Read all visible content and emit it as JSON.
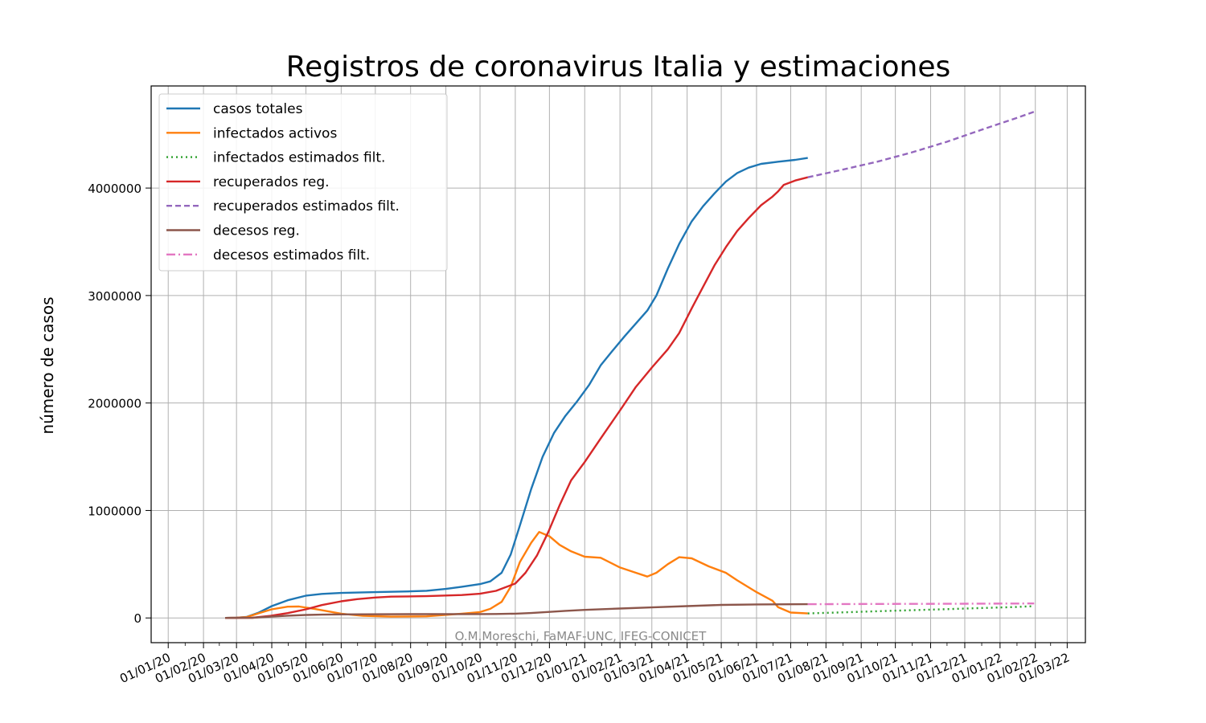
{
  "chart_data": {
    "type": "line",
    "title": "Registros de coronavirus Italia y estimaciones",
    "xlabel": "",
    "ylabel": "número de casos",
    "watermark": "O.M.Moreschi, FaMAF-UNC, IFEG-CONICET",
    "xlim": [
      "2019-12-17",
      "2022-03-17"
    ],
    "ylim": [
      -230000,
      4950000
    ],
    "grid": true,
    "legend_position": "top-left",
    "x_tick_labels": [
      "01/01/20",
      "01/02/20",
      "01/03/20",
      "01/04/20",
      "01/05/20",
      "01/06/20",
      "01/07/20",
      "01/08/20",
      "01/09/20",
      "01/10/20",
      "01/11/20",
      "01/12/20",
      "01/01/21",
      "01/02/21",
      "01/03/21",
      "01/04/21",
      "01/05/21",
      "01/06/21",
      "01/07/21",
      "01/08/21",
      "01/09/21",
      "01/10/21",
      "01/11/21",
      "01/12/21",
      "01/01/22",
      "01/02/22",
      "01/03/22"
    ],
    "y_ticks": [
      0,
      1000000,
      2000000,
      3000000,
      4000000
    ],
    "y_tick_labels": [
      "0",
      "1000000",
      "2000000",
      "3000000",
      "4000000"
    ],
    "series": [
      {
        "name": "casos totales",
        "color": "#1f77b4",
        "style": "solid",
        "points": [
          [
            "2020-02-20",
            0
          ],
          [
            "2020-03-01",
            1700
          ],
          [
            "2020-03-10",
            10000
          ],
          [
            "2020-03-20",
            47000
          ],
          [
            "2020-04-01",
            110000
          ],
          [
            "2020-04-15",
            165000
          ],
          [
            "2020-05-01",
            207000
          ],
          [
            "2020-05-15",
            224000
          ],
          [
            "2020-06-01",
            233000
          ],
          [
            "2020-07-01",
            240000
          ],
          [
            "2020-08-01",
            248000
          ],
          [
            "2020-08-15",
            253000
          ],
          [
            "2020-09-01",
            270000
          ],
          [
            "2020-09-15",
            290000
          ],
          [
            "2020-10-01",
            315000
          ],
          [
            "2020-10-10",
            340000
          ],
          [
            "2020-10-20",
            420000
          ],
          [
            "2020-10-28",
            590000
          ],
          [
            "2020-11-05",
            860000
          ],
          [
            "2020-11-15",
            1200000
          ],
          [
            "2020-11-25",
            1500000
          ],
          [
            "2020-12-05",
            1720000
          ],
          [
            "2020-12-15",
            1880000
          ],
          [
            "2020-12-25",
            2010000
          ],
          [
            "2021-01-05",
            2170000
          ],
          [
            "2021-01-15",
            2350000
          ],
          [
            "2021-01-25",
            2480000
          ],
          [
            "2021-02-05",
            2620000
          ],
          [
            "2021-02-15",
            2740000
          ],
          [
            "2021-02-25",
            2860000
          ],
          [
            "2021-03-05",
            3000000
          ],
          [
            "2021-03-15",
            3250000
          ],
          [
            "2021-03-25",
            3480000
          ],
          [
            "2021-04-05",
            3690000
          ],
          [
            "2021-04-15",
            3830000
          ],
          [
            "2021-04-25",
            3950000
          ],
          [
            "2021-05-05",
            4060000
          ],
          [
            "2021-05-15",
            4140000
          ],
          [
            "2021-05-25",
            4190000
          ],
          [
            "2021-06-05",
            4225000
          ],
          [
            "2021-06-20",
            4245000
          ],
          [
            "2021-07-05",
            4262000
          ],
          [
            "2021-07-16",
            4280000
          ]
        ]
      },
      {
        "name": "infectados activos",
        "color": "#ff7f0e",
        "style": "solid",
        "points": [
          [
            "2020-02-20",
            0
          ],
          [
            "2020-03-01",
            1500
          ],
          [
            "2020-03-10",
            8000
          ],
          [
            "2020-03-20",
            42000
          ],
          [
            "2020-04-01",
            80000
          ],
          [
            "2020-04-15",
            105000
          ],
          [
            "2020-04-25",
            106000
          ],
          [
            "2020-05-10",
            82000
          ],
          [
            "2020-06-01",
            40000
          ],
          [
            "2020-06-20",
            20000
          ],
          [
            "2020-07-15",
            12000
          ],
          [
            "2020-08-15",
            15000
          ],
          [
            "2020-09-15",
            40000
          ],
          [
            "2020-10-01",
            55000
          ],
          [
            "2020-10-10",
            85000
          ],
          [
            "2020-10-20",
            150000
          ],
          [
            "2020-10-28",
            290000
          ],
          [
            "2020-11-05",
            520000
          ],
          [
            "2020-11-15",
            700000
          ],
          [
            "2020-11-22",
            800000
          ],
          [
            "2020-12-01",
            760000
          ],
          [
            "2020-12-10",
            680000
          ],
          [
            "2020-12-20",
            620000
          ],
          [
            "2021-01-01",
            570000
          ],
          [
            "2021-01-15",
            560000
          ],
          [
            "2021-02-01",
            470000
          ],
          [
            "2021-02-15",
            420000
          ],
          [
            "2021-02-25",
            385000
          ],
          [
            "2021-03-05",
            420000
          ],
          [
            "2021-03-15",
            500000
          ],
          [
            "2021-03-25",
            565000
          ],
          [
            "2021-04-05",
            555000
          ],
          [
            "2021-04-20",
            480000
          ],
          [
            "2021-05-05",
            420000
          ],
          [
            "2021-05-15",
            350000
          ],
          [
            "2021-06-01",
            240000
          ],
          [
            "2021-06-15",
            160000
          ],
          [
            "2021-06-20",
            100000
          ],
          [
            "2021-07-01",
            50000
          ],
          [
            "2021-07-16",
            42000
          ]
        ]
      },
      {
        "name": "infectados estimados filt.",
        "color": "#2ca02c",
        "style": "dotted",
        "points": [
          [
            "2021-07-16",
            42000
          ],
          [
            "2021-08-15",
            52000
          ],
          [
            "2021-09-15",
            62000
          ],
          [
            "2021-10-15",
            72000
          ],
          [
            "2021-11-15",
            82000
          ],
          [
            "2021-12-15",
            92000
          ],
          [
            "2022-01-15",
            102000
          ],
          [
            "2022-01-31",
            110000
          ]
        ]
      },
      {
        "name": "recuperados reg.",
        "color": "#d62728",
        "style": "solid",
        "points": [
          [
            "2020-02-20",
            0
          ],
          [
            "2020-03-15",
            2000
          ],
          [
            "2020-03-31",
            20000
          ],
          [
            "2020-04-15",
            45000
          ],
          [
            "2020-05-01",
            80000
          ],
          [
            "2020-05-15",
            120000
          ],
          [
            "2020-06-01",
            155000
          ],
          [
            "2020-06-15",
            175000
          ],
          [
            "2020-07-01",
            190000
          ],
          [
            "2020-07-15",
            198000
          ],
          [
            "2020-08-15",
            203000
          ],
          [
            "2020-09-15",
            213000
          ],
          [
            "2020-10-01",
            225000
          ],
          [
            "2020-10-15",
            252000
          ],
          [
            "2020-11-01",
            320000
          ],
          [
            "2020-11-10",
            420000
          ],
          [
            "2020-11-20",
            580000
          ],
          [
            "2020-11-30",
            800000
          ],
          [
            "2020-12-10",
            1050000
          ],
          [
            "2020-12-20",
            1280000
          ],
          [
            "2021-01-01",
            1450000
          ],
          [
            "2021-01-15",
            1670000
          ],
          [
            "2021-02-01",
            1930000
          ],
          [
            "2021-02-15",
            2150000
          ],
          [
            "2021-03-01",
            2330000
          ],
          [
            "2021-03-15",
            2500000
          ],
          [
            "2021-03-25",
            2650000
          ],
          [
            "2021-04-05",
            2880000
          ],
          [
            "2021-04-15",
            3080000
          ],
          [
            "2021-04-25",
            3280000
          ],
          [
            "2021-05-05",
            3450000
          ],
          [
            "2021-05-15",
            3600000
          ],
          [
            "2021-05-25",
            3720000
          ],
          [
            "2021-06-05",
            3840000
          ],
          [
            "2021-06-15",
            3920000
          ],
          [
            "2021-06-20",
            3970000
          ],
          [
            "2021-06-25",
            4030000
          ],
          [
            "2021-07-05",
            4070000
          ],
          [
            "2021-07-16",
            4100000
          ]
        ]
      },
      {
        "name": "recuperados estimados filt.",
        "color": "#9467bd",
        "style": "dashed",
        "points": [
          [
            "2021-07-16",
            4100000
          ],
          [
            "2021-08-15",
            4170000
          ],
          [
            "2021-09-15",
            4245000
          ],
          [
            "2021-10-15",
            4330000
          ],
          [
            "2021-11-15",
            4430000
          ],
          [
            "2021-12-15",
            4540000
          ],
          [
            "2022-01-15",
            4650000
          ],
          [
            "2022-01-31",
            4710000
          ]
        ]
      },
      {
        "name": "decesos reg.",
        "color": "#8c564b",
        "style": "solid",
        "points": [
          [
            "2020-02-20",
            0
          ],
          [
            "2020-03-15",
            2000
          ],
          [
            "2020-04-01",
            13000
          ],
          [
            "2020-04-15",
            21000
          ],
          [
            "2020-05-01",
            28000
          ],
          [
            "2020-05-15",
            31000
          ],
          [
            "2020-06-01",
            33000
          ],
          [
            "2020-08-01",
            35000
          ],
          [
            "2020-10-01",
            36000
          ],
          [
            "2020-10-15",
            37000
          ],
          [
            "2020-11-01",
            40000
          ],
          [
            "2020-11-15",
            46000
          ],
          [
            "2020-12-01",
            56000
          ],
          [
            "2020-12-15",
            66000
          ],
          [
            "2021-01-01",
            75000
          ],
          [
            "2021-02-01",
            88000
          ],
          [
            "2021-03-01",
            98000
          ],
          [
            "2021-04-01",
            110000
          ],
          [
            "2021-05-01",
            121000
          ],
          [
            "2021-06-01",
            126000
          ],
          [
            "2021-07-16",
            128000
          ]
        ]
      },
      {
        "name": "decesos estimados filt.",
        "color": "#e377c2",
        "style": "dashdot",
        "points": [
          [
            "2021-07-16",
            128000
          ],
          [
            "2021-09-15",
            130000
          ],
          [
            "2021-11-15",
            132000
          ],
          [
            "2022-01-31",
            135000
          ]
        ]
      }
    ]
  }
}
